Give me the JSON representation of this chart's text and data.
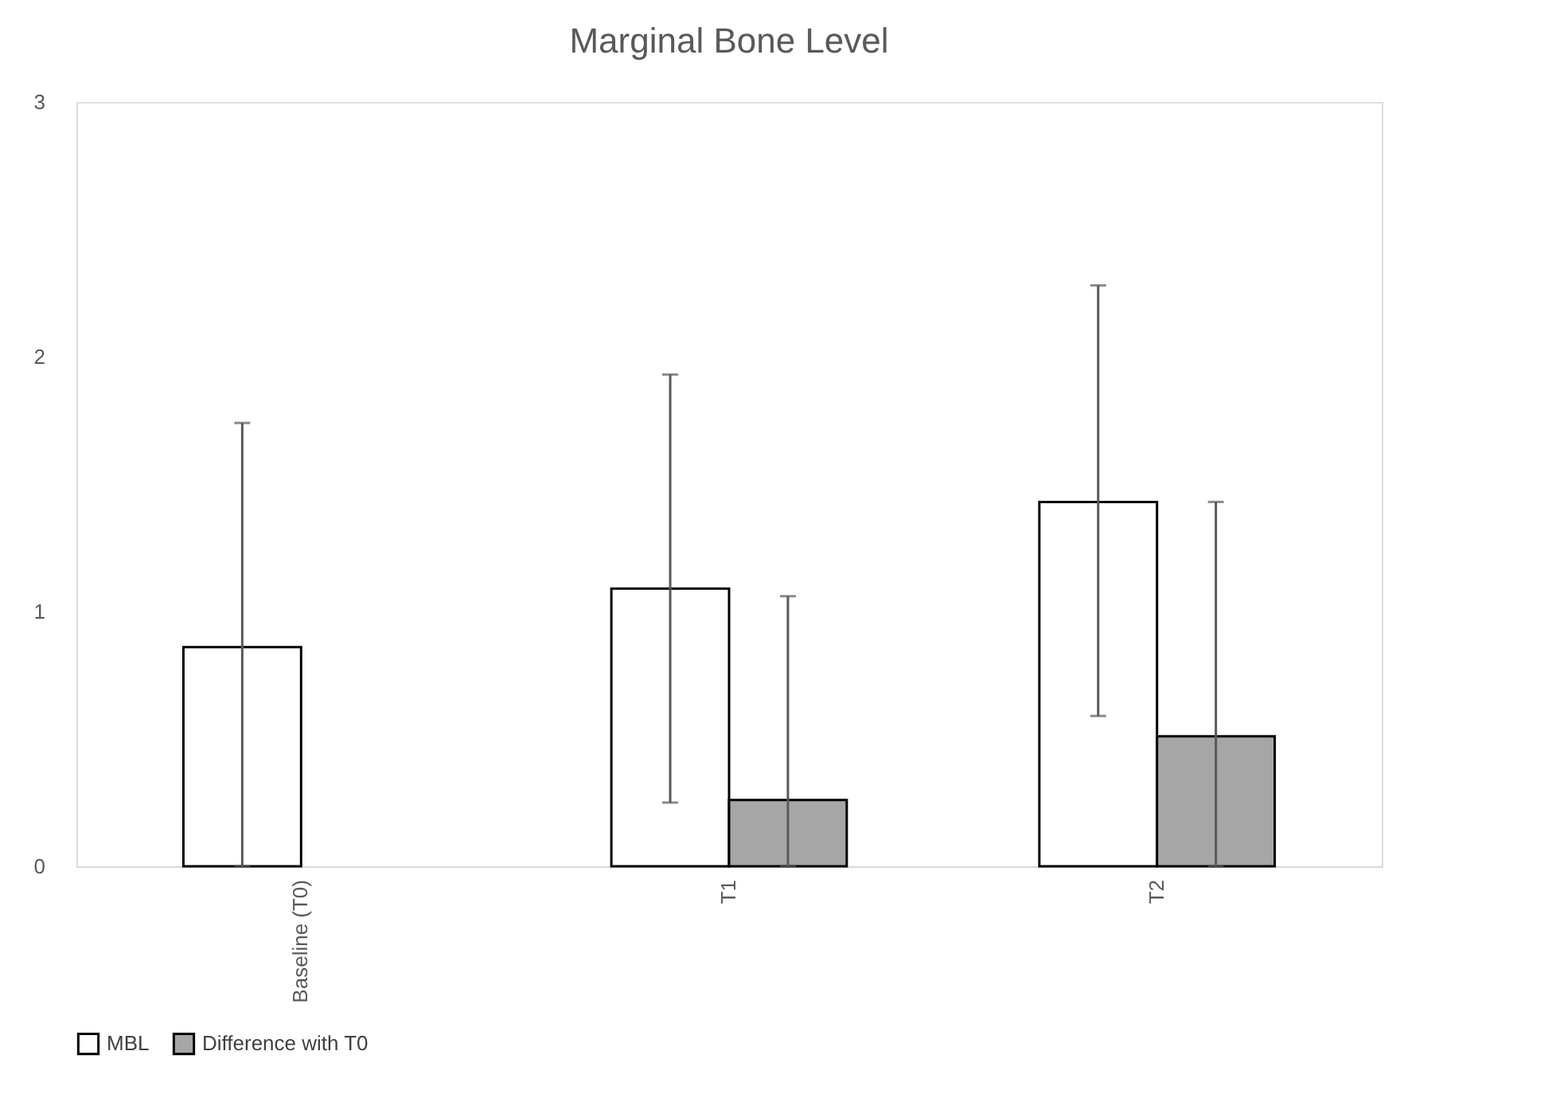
{
  "chart_data": {
    "type": "bar",
    "title": "Marginal Bone Level",
    "categories": [
      "Baseline (T0)",
      "T1",
      "T2"
    ],
    "series": [
      {
        "name": "MBL",
        "color": "#ffffff",
        "values": [
          0.86,
          1.09,
          1.43
        ],
        "errors": [
          [
            0,
            1.74
          ],
          [
            0.25,
            1.93
          ],
          [
            0.59,
            2.28
          ]
        ]
      },
      {
        "name": "Difference with T0",
        "color": "#a6a6a6",
        "values": [
          null,
          0.26,
          0.51
        ],
        "errors": [
          null,
          [
            0,
            1.06
          ],
          [
            0,
            1.43
          ]
        ]
      }
    ],
    "ylim": [
      0,
      3
    ],
    "yticks": [
      0,
      1,
      2,
      3
    ],
    "grid": false,
    "legend": "bottom"
  }
}
